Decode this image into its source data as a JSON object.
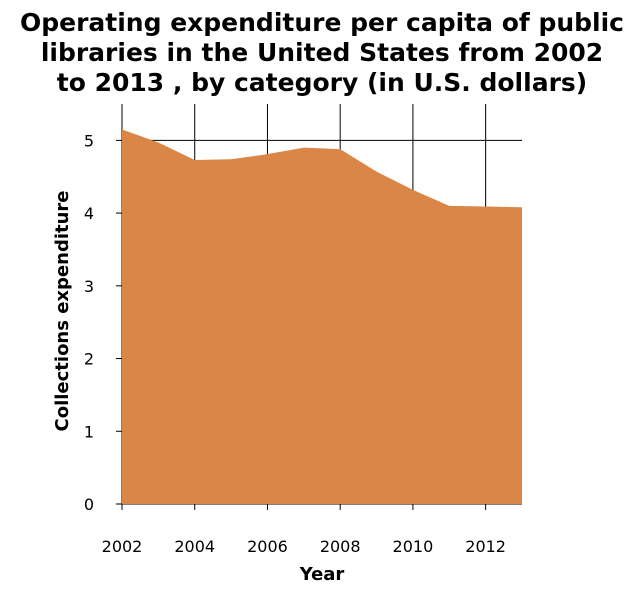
{
  "chart_data": {
    "type": "area",
    "title_lines": [
      "Operating expenditure per capita of public",
      "libraries in the United States from 2002",
      "to 2013 , by category (in U.S. dollars)"
    ],
    "xlabel": "Year",
    "ylabel": "Collections expenditure",
    "x": [
      2002,
      2003,
      2004,
      2005,
      2006,
      2007,
      2008,
      2009,
      2010,
      2011,
      2012,
      2013
    ],
    "series": [
      {
        "values": [
          5.15,
          4.97,
          4.73,
          4.74,
          4.81,
          4.9,
          4.88,
          4.57,
          4.32,
          4.1,
          4.09,
          4.08
        ]
      }
    ],
    "xlim": [
      2002,
      2013
    ],
    "ylim": [
      0,
      5.5
    ],
    "x_ticks": [
      2002,
      2004,
      2006,
      2008,
      2010,
      2012
    ],
    "x_tick_labels": [
      "2002",
      "2004",
      "2006",
      "2008",
      "2010",
      "2012"
    ],
    "y_ticks": [
      0,
      1,
      2,
      3,
      4,
      5
    ],
    "y_tick_labels": [
      "0",
      "1",
      "2",
      "3",
      "4",
      "5"
    ],
    "grid": true,
    "colors": {
      "fill": "#d98646",
      "grid": "#000000",
      "background": "#ffffff"
    }
  }
}
